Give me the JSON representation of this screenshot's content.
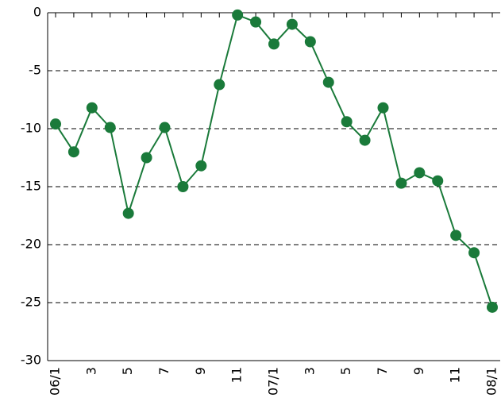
{
  "chart_data": {
    "type": "line",
    "categories": [
      "06/1",
      null,
      "3",
      null,
      "5",
      null,
      "7",
      null,
      "9",
      null,
      "11",
      null,
      "07/1",
      null,
      "3",
      null,
      "5",
      null,
      "7",
      null,
      "9",
      null,
      "11",
      null,
      "08/1"
    ],
    "series": [
      {
        "color": "#1a7a3a",
        "values": [
          -9.6,
          -12.0,
          -8.2,
          -9.9,
          -17.3,
          -12.5,
          -9.9,
          -15.0,
          -13.2,
          -6.2,
          -0.2,
          -0.8,
          -2.7,
          -1.0,
          -2.5,
          -6.0,
          -9.4,
          -11.0,
          -8.2,
          -14.7,
          -13.8,
          -14.5,
          -19.2,
          -20.7,
          -25.4
        ]
      }
    ],
    "ylim": [
      -30,
      0
    ],
    "yticks": [
      0,
      -5,
      -10,
      -15,
      -20,
      -25,
      -30
    ],
    "grid": true
  }
}
